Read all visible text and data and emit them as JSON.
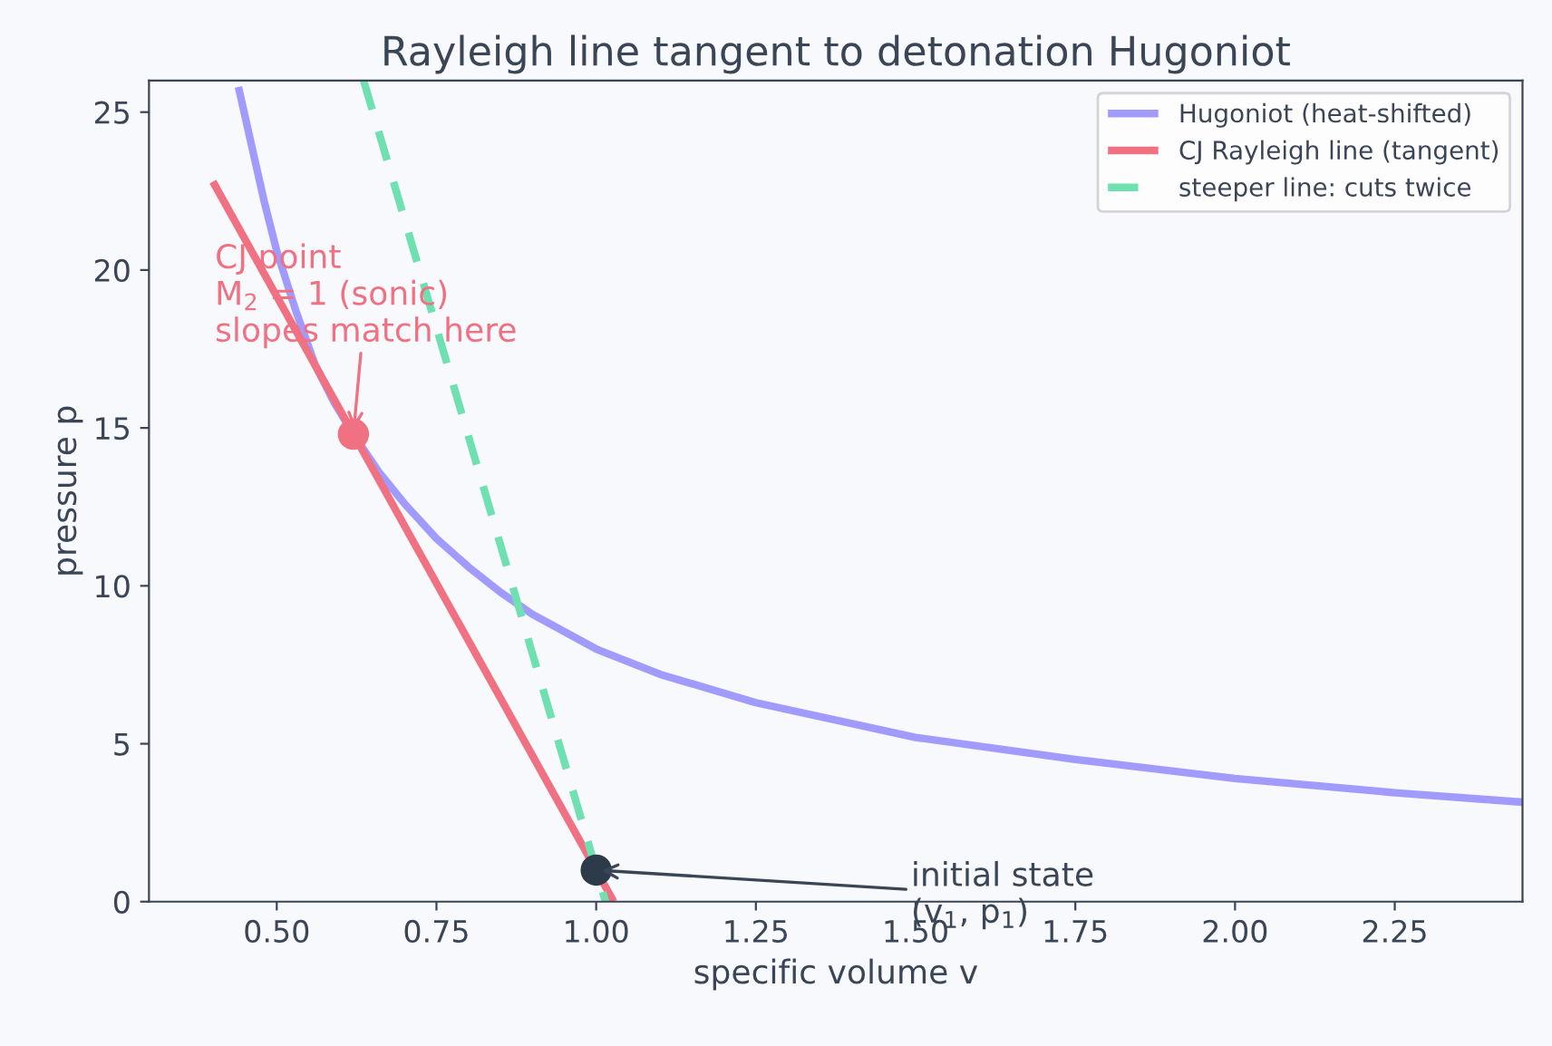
{
  "chart_data": {
    "type": "line",
    "title": "Rayleigh line tangent to detonation Hugoniot",
    "xlabel": "specific volume v",
    "ylabel": "pressure p",
    "xlim": [
      0.3,
      2.45
    ],
    "ylim": [
      0,
      26
    ],
    "xticks": [
      {
        "value": 0.5,
        "label": "0.50"
      },
      0.75,
      {
        "value": 1,
        "label": "1.00"
      },
      1.25,
      {
        "value": 1.5,
        "label": "1.50"
      },
      1.75,
      {
        "value": 2,
        "label": "2.00"
      },
      2.25
    ],
    "yticks": [
      0,
      5,
      10,
      15,
      20,
      25
    ],
    "legend": "top right",
    "grid": false,
    "series": [
      {
        "name": "Hugoniot (heat-shifted)",
        "color": "#a29bfe",
        "line_style": "solid",
        "x": [
          0.44,
          0.46,
          0.48,
          0.5,
          0.53,
          0.56,
          0.59,
          0.62,
          0.66,
          0.7,
          0.75,
          0.8,
          0.85,
          0.9,
          1.0,
          1.1,
          1.25,
          1.5,
          1.75,
          2.0,
          2.25,
          2.45
        ],
        "values": [
          25.8,
          24.0,
          22.2,
          20.6,
          18.7,
          17.0,
          15.8,
          14.8,
          13.6,
          12.6,
          11.5,
          10.6,
          9.8,
          9.1,
          8.0,
          7.2,
          6.3,
          5.2,
          4.5,
          3.9,
          3.45,
          3.15
        ]
      },
      {
        "name": "CJ Rayleigh line (tangent)",
        "color": "#f07182",
        "line_style": "solid",
        "x": [
          0.4,
          1.0275
        ],
        "values": [
          22.8,
          0
        ]
      },
      {
        "name": "steeper line: cuts twice",
        "color": "#6fe0b0",
        "line_style": "dashed",
        "x": [
          0.636,
          1.0146
        ],
        "values": [
          26,
          0
        ]
      },
      {
        "type": "scatter",
        "color": "#f07182",
        "x": [
          0.62
        ],
        "values": [
          14.8
        ]
      },
      {
        "type": "scatter",
        "color": "#2d3a4a",
        "x": [
          1.0
        ],
        "values": [
          1.0
        ]
      }
    ],
    "annotations": [
      {
        "text": "CJ point\nM$_{2}$ = 1 (sonic)\nslopes match here",
        "x": 0.62,
        "y": 14.8
      },
      {
        "text": "initial state\n(v$_{1}$, p$_{1}$)",
        "x": 1.0,
        "y": 1.0
      }
    ]
  }
}
